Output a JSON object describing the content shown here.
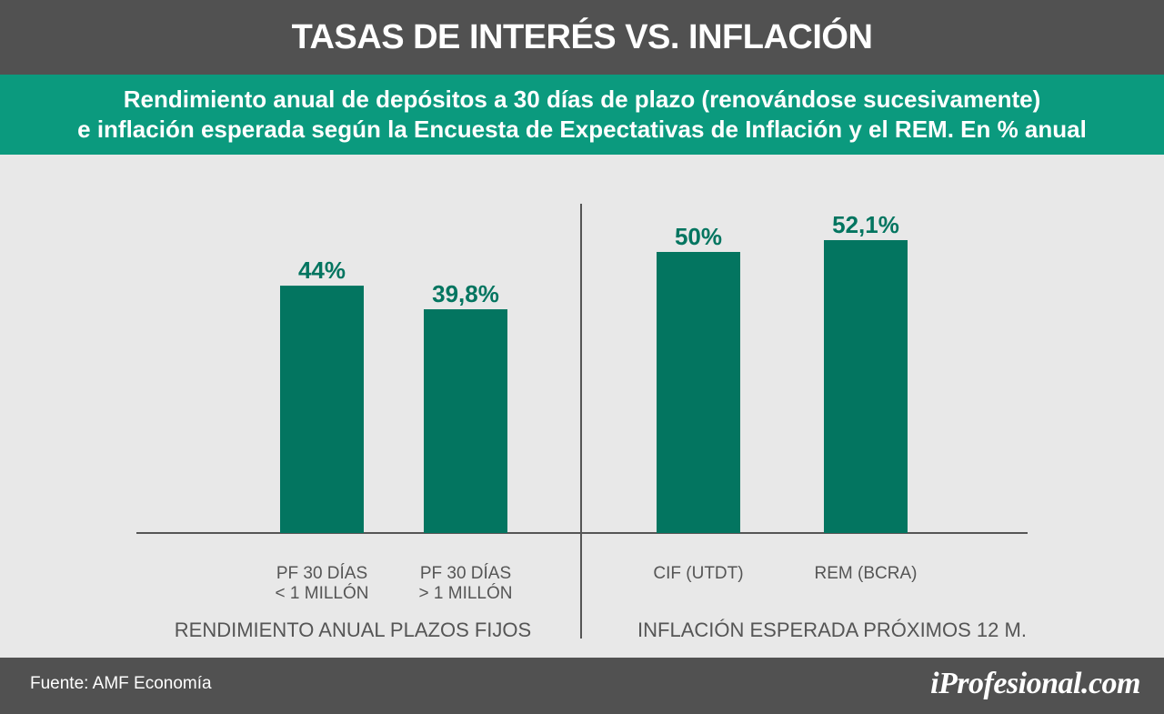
{
  "header": {
    "title": "TASAS DE INTERÉS VS. INFLACIÓN",
    "subtitle_line1": "Rendimiento anual de depósitos a 30 días de plazo (renovándose sucesivamente)",
    "subtitle_line2": "e inflación esperada según la Encuesta de Expectativas de Inflación y el REM. En % anual"
  },
  "footer": {
    "source": "Fuente: AMF Economía",
    "logo": "iProfesional.com"
  },
  "colors": {
    "title_bg": "#515151",
    "subtitle_bg": "#0b9a7e",
    "bar": "#037560",
    "value_label": "#037560",
    "category_label": "#555555",
    "axis": "#555555",
    "plot_bg": "#e8e8e8"
  },
  "chart_data": {
    "type": "bar",
    "value_unit": "%",
    "groups": [
      {
        "name": "RENDIMIENTO ANUAL PLAZOS FIJOS",
        "categories": [
          [
            "PF 30 DÍAS",
            "< 1 MILLÓN"
          ],
          [
            "PF 30 DÍAS",
            "> 1 MILLÓN"
          ]
        ],
        "values": [
          44,
          39.8
        ],
        "labels": [
          "44%",
          "39,8%"
        ]
      },
      {
        "name": "INFLACIÓN ESPERADA PRÓXIMOS 12 M.",
        "categories": [
          [
            "CIF (UTDT)"
          ],
          [
            "REM (BCRA)"
          ]
        ],
        "values": [
          50,
          52.1
        ],
        "labels": [
          "50%",
          "52,1%"
        ]
      }
    ]
  }
}
